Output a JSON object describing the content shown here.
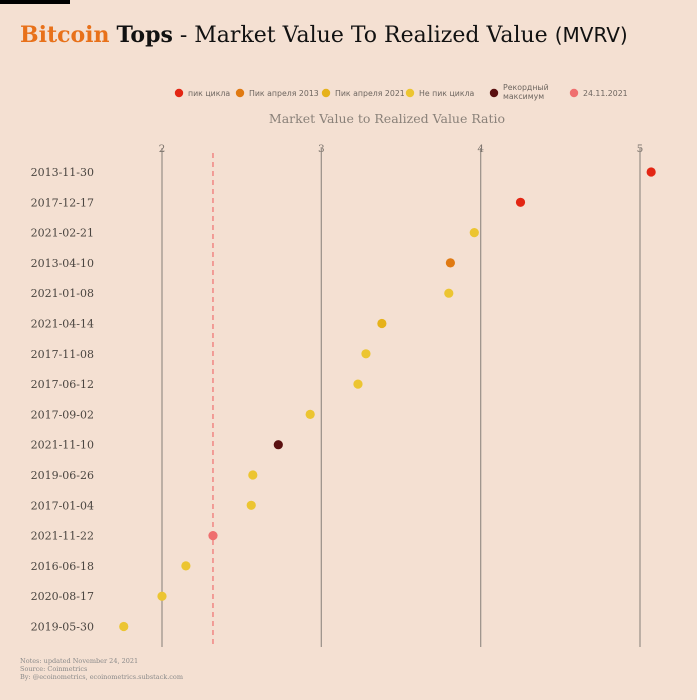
{
  "title": {
    "brand_highlight": "Bitcoin",
    "brand_bold": "Tops",
    "separator": "-",
    "main": "Market Value To Realized Value",
    "acronym": "(MVRV)"
  },
  "footer": {
    "notes": "Notes: updated November 24, 2021",
    "source": "Source: Coinmetrics",
    "by": "By: @ecoinometrics, ecoinometrics.substack.com"
  },
  "colors": {
    "background": "#f4e0d2",
    "title_accent": "#e8711a",
    "grid": "#9e958d",
    "reference_line": "#ef6f6f"
  },
  "chart_data": {
    "type": "scatter",
    "title": "Market Value to Realized Value Ratio",
    "xlabel": "Market Value to Realized Value Ratio",
    "ylabel": "",
    "xlim": [
      1.75,
      5.35
    ],
    "x_ticks": [
      2,
      3,
      4,
      5
    ],
    "grid": "vertical",
    "legend_position": "top",
    "reference_line": {
      "x": 2.32,
      "style": "dashed",
      "color": "#ef6f6f"
    },
    "legend": [
      {
        "name": "пик цикла",
        "color": "#e32614"
      },
      {
        "name": "Пик апреля 2013",
        "color": "#e07a12"
      },
      {
        "name": "Пик апреля 2021",
        "color": "#e6b21a"
      },
      {
        "name": "Не пик цикла",
        "color": "#ecc531"
      },
      {
        "name": "Рекордный максимум",
        "lines": [
          "Рекордный",
          "максимум"
        ],
        "color": "#5a1010"
      },
      {
        "name": "24.11.2021",
        "color": "#ef6f6f"
      }
    ],
    "categories": [
      "2013-11-30",
      "2017-12-17",
      "2021-02-21",
      "2013-04-10",
      "2021-01-08",
      "2021-04-14",
      "2017-11-08",
      "2017-06-12",
      "2017-09-02",
      "2021-11-10",
      "2019-06-26",
      "2017-01-04",
      "2021-11-22",
      "2016-06-18",
      "2020-08-17",
      "2019-05-30"
    ],
    "points": [
      {
        "date": "2013-11-30",
        "value": 5.07,
        "group": "пик цикла",
        "color": "#e32614"
      },
      {
        "date": "2017-12-17",
        "value": 4.25,
        "group": "пик цикла",
        "color": "#e32614"
      },
      {
        "date": "2021-02-21",
        "value": 3.96,
        "group": "Не пик цикла",
        "color": "#ecc531"
      },
      {
        "date": "2013-04-10",
        "value": 3.81,
        "group": "Пик апреля 2013",
        "color": "#e07a12"
      },
      {
        "date": "2021-01-08",
        "value": 3.8,
        "group": "Не пик цикла",
        "color": "#ecc531"
      },
      {
        "date": "2021-04-14",
        "value": 3.38,
        "group": "Пик апреля 2021",
        "color": "#e6b21a"
      },
      {
        "date": "2017-11-08",
        "value": 3.28,
        "group": "Не пик цикла",
        "color": "#ecc531"
      },
      {
        "date": "2017-06-12",
        "value": 3.23,
        "group": "Не пик цикла",
        "color": "#ecc531"
      },
      {
        "date": "2017-09-02",
        "value": 2.93,
        "group": "Не пик цикла",
        "color": "#ecc531"
      },
      {
        "date": "2021-11-10",
        "value": 2.73,
        "group": "Рекордный максимум",
        "color": "#5a1010"
      },
      {
        "date": "2019-06-26",
        "value": 2.57,
        "group": "Не пик цикла",
        "color": "#ecc531"
      },
      {
        "date": "2017-01-04",
        "value": 2.56,
        "group": "Не пик цикла",
        "color": "#ecc531"
      },
      {
        "date": "2021-11-22",
        "value": 2.32,
        "group": "24.11.2021",
        "color": "#ef6f6f"
      },
      {
        "date": "2016-06-18",
        "value": 2.15,
        "group": "Не пик цикла",
        "color": "#ecc531"
      },
      {
        "date": "2020-08-17",
        "value": 2.0,
        "group": "Не пик цикла",
        "color": "#ecc531"
      },
      {
        "date": "2019-05-30",
        "value": 1.76,
        "group": "Не пик цикла",
        "color": "#ecc531"
      }
    ]
  }
}
